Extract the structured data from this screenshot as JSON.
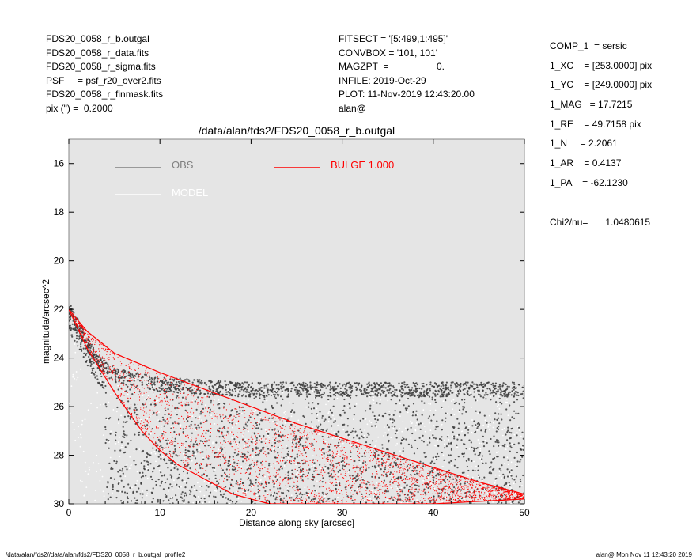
{
  "colors": {
    "plot_bg": "#e5e5e5",
    "obs": "#808080",
    "obs_points": "#3a3a3a",
    "model": "#ffffff",
    "bulge": "#ff0000"
  },
  "header_left": [
    "FDS20_0058_r_b.outgal",
    "FDS20_0058_r_data.fits",
    "FDS20_0058_r_sigma.fits",
    "PSF     = psf_r20_over2.fits",
    "FDS20_0058_r_finmask.fits",
    "pix (\") =  0.2000"
  ],
  "header_mid": [
    "FITSECT = '[5:499,1:495]'",
    "CONVBOX = '101, 101'",
    "MAGZPT  =",
    "INFILE: 2019-Oct-29",
    "PLOT: 11-Nov-2019 12:43:20.00",
    "alan@"
  ],
  "magzpt_value": "0.",
  "params": [
    "COMP_1  = sersic",
    "1_XC    = [253.0000] pix",
    "1_YC    = [249.0000] pix",
    "1_MAG   = 17.7215",
    "1_RE    = 49.7158 pix",
    "1_N     = 2.2061",
    "1_AR    = 0.4137",
    "1_PA    = -62.1230"
  ],
  "chi_label": "Chi2/nu=",
  "chi_value": "1.0480615",
  "plot_title": "/data/alan/fds2/FDS20_0058_r_b.outgal",
  "footer_left": "/data/alan/fds2//data/alan/fds2/FDS20_0058_r_b.outgal_profile2",
  "footer_right": "alan@  Mon Nov 11 12:43:20 2019",
  "chart_data": {
    "type": "scatter",
    "title": "/data/alan/fds2/FDS20_0058_r_b.outgal",
    "xlabel": "Distance along sky [arcsec]",
    "ylabel": "magnitude/arcsec^2",
    "xlim": [
      0,
      50
    ],
    "ylim": [
      30,
      15
    ],
    "y_inverted": true,
    "x_ticks": [
      0,
      10,
      20,
      30,
      40,
      50
    ],
    "y_ticks": [
      16,
      18,
      20,
      22,
      24,
      26,
      28,
      30
    ],
    "legend": [
      {
        "label": "OBS",
        "color": "#808080"
      },
      {
        "label": "MODEL",
        "color": "#ffffff"
      },
      {
        "label": "BULGE  1.000",
        "color": "#ff0000"
      }
    ],
    "series": [
      {
        "name": "OBS",
        "description_points": "scatter of observed pixels",
        "inner_edge": [
          [
            0,
            21.7
          ],
          [
            1,
            22.4
          ],
          [
            3,
            23.8
          ],
          [
            5,
            24.4
          ],
          [
            10,
            24.8
          ],
          [
            20,
            25.0
          ],
          [
            30,
            25.0
          ],
          [
            40,
            25.0
          ],
          [
            50,
            25.0
          ]
        ],
        "noise_floor_mag": 25.0
      },
      {
        "name": "BULGE  1.000",
        "upper_envelope": [
          [
            0,
            22.0
          ],
          [
            2,
            22.9
          ],
          [
            5,
            23.8
          ],
          [
            10,
            24.6
          ],
          [
            15,
            25.3
          ],
          [
            20,
            26.0
          ],
          [
            25,
            26.7
          ],
          [
            30,
            27.3
          ],
          [
            35,
            27.9
          ],
          [
            40,
            28.5
          ],
          [
            45,
            29.1
          ],
          [
            50,
            29.6
          ]
        ],
        "lower_envelope": [
          [
            0,
            22.0
          ],
          [
            2,
            23.6
          ],
          [
            5,
            25.4
          ],
          [
            8,
            27.0
          ],
          [
            10,
            27.8
          ],
          [
            12,
            28.4
          ],
          [
            15,
            29.0
          ],
          [
            18,
            29.6
          ],
          [
            22,
            30.0
          ],
          [
            30,
            30.0
          ],
          [
            40,
            30.0
          ],
          [
            50,
            29.8
          ]
        ]
      }
    ]
  }
}
